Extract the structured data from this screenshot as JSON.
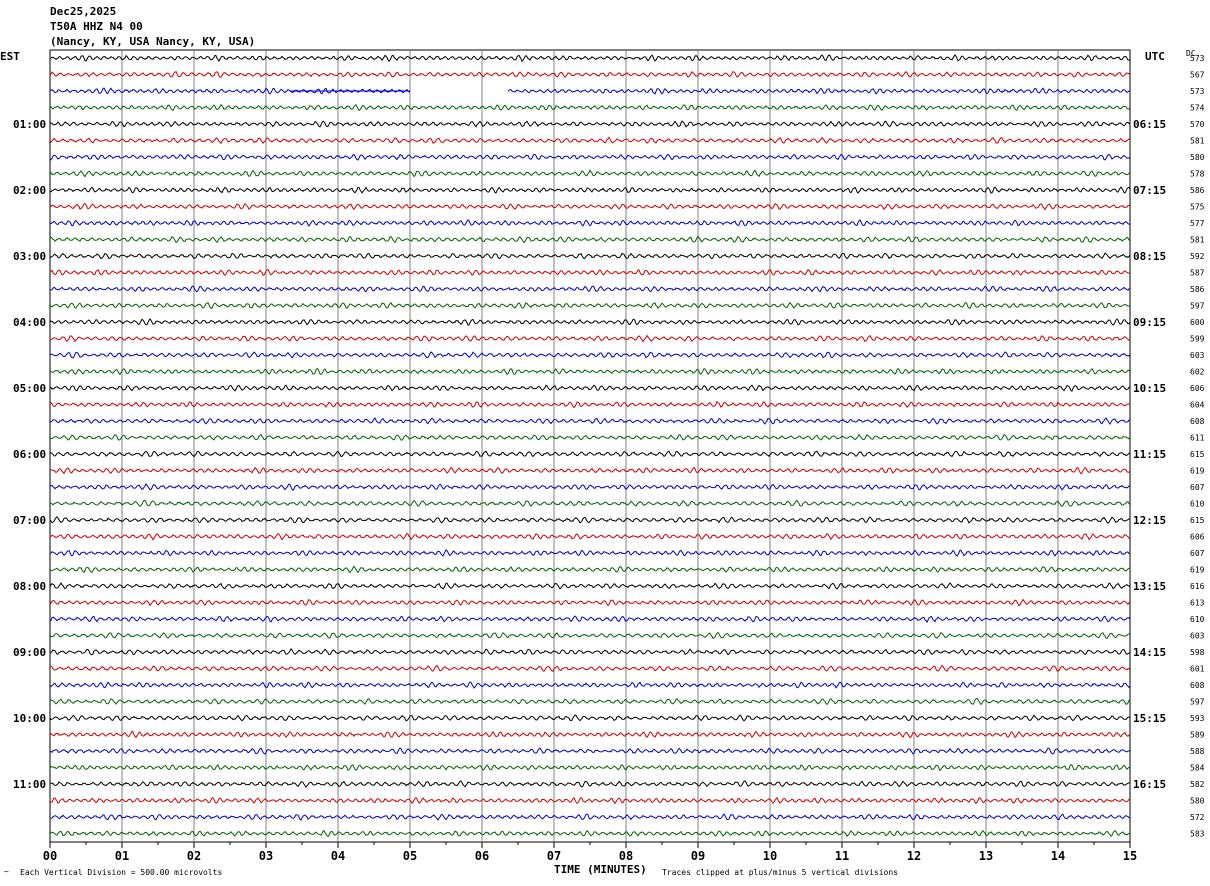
{
  "header": {
    "date": "Dec25,2025",
    "station": "T50A HHZ N4 00",
    "location": "(Nancy, KY, USA Nancy, KY, USA)"
  },
  "axes": {
    "left_zone": "EST",
    "right_zone": "UTC",
    "dc_label": "DC",
    "xlabel": "TIME (MINUTES)"
  },
  "footer": {
    "scale_note": "Each Vertical Division =  500.00 microvolts",
    "clip_note": "Traces clipped at plus/minus 5 vertical divisions"
  },
  "chart_data": {
    "type": "line",
    "x_range_minutes": [
      0,
      15
    ],
    "x_ticks": [
      "00",
      "01",
      "02",
      "03",
      "04",
      "05",
      "06",
      "07",
      "08",
      "09",
      "10",
      "11",
      "12",
      "13",
      "14",
      "15"
    ],
    "trace_colors": [
      "#000000",
      "#d00000",
      "#0000c8",
      "#006400"
    ],
    "left_time_labels": [
      "01:00",
      "02:00",
      "03:00",
      "04:00",
      "05:00",
      "06:00",
      "07:00",
      "08:00",
      "09:00",
      "10:00",
      "11:00"
    ],
    "right_time_labels": [
      "06:15",
      "07:15",
      "08:15",
      "09:15",
      "10:15",
      "11:15",
      "12:15",
      "13:15",
      "14:15",
      "15:15",
      "16:15"
    ],
    "dc_offsets": [
      573,
      567,
      573,
      574,
      570,
      581,
      580,
      578,
      586,
      575,
      577,
      581,
      592,
      587,
      586,
      597,
      600,
      599,
      603,
      602,
      606,
      604,
      608,
      611,
      615,
      619,
      607,
      610,
      615,
      606,
      607,
      619,
      616,
      613,
      610,
      603,
      598,
      601,
      608,
      597,
      593,
      589,
      588,
      584,
      582,
      580,
      572,
      583
    ],
    "grid": true,
    "data_gap": {
      "trace": 2,
      "from_minute": 5.0,
      "to_minute": 6.35
    }
  }
}
